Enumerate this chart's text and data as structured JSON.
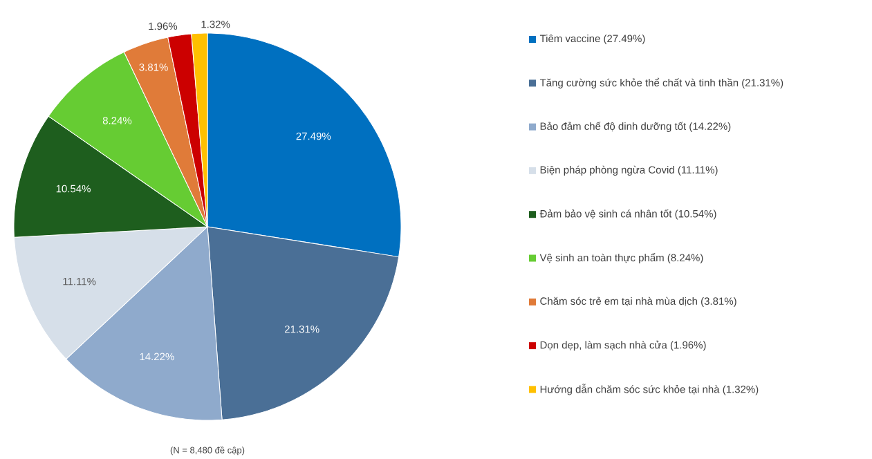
{
  "chart_data": {
    "type": "pie",
    "legend": "right",
    "categories": [
      "Tiêm vaccine (27.49%)",
      "Tăng cường sức khỏe thể chất và tinh thần (21.31%)",
      "Bảo đảm chế độ dinh dưỡng tốt (14.22%)",
      "Biện pháp phòng ngừa Covid (11.11%)",
      "Đảm bảo vệ sinh cá nhân tốt (10.54%)",
      "Vệ sinh an toàn thực phẩm (8.24%)",
      "Chăm sóc trẻ em tại nhà mùa dịch (3.81%)",
      "Dọn dẹp, làm sạch nhà cửa (1.96%)",
      "Hướng dẫn chăm sóc sức khỏe tại nhà (1.32%)"
    ],
    "values": [
      27.49,
      21.31,
      14.22,
      11.11,
      10.54,
      8.24,
      3.81,
      1.96,
      1.32
    ],
    "value_labels": [
      "27.49%",
      "21.31%",
      "14.22%",
      "11.11%",
      "10.54%",
      "8.24%",
      "3.81%",
      "1.96%",
      "1.32%"
    ],
    "colors": [
      "#0070c0",
      "#4a6f96",
      "#8faacc",
      "#d6dfe9",
      "#1e5e1e",
      "#66cc33",
      "#e07b39",
      "#cc0000",
      "#ffc000"
    ],
    "annotations": [
      "(N = 8,480 đề cập)"
    ]
  }
}
